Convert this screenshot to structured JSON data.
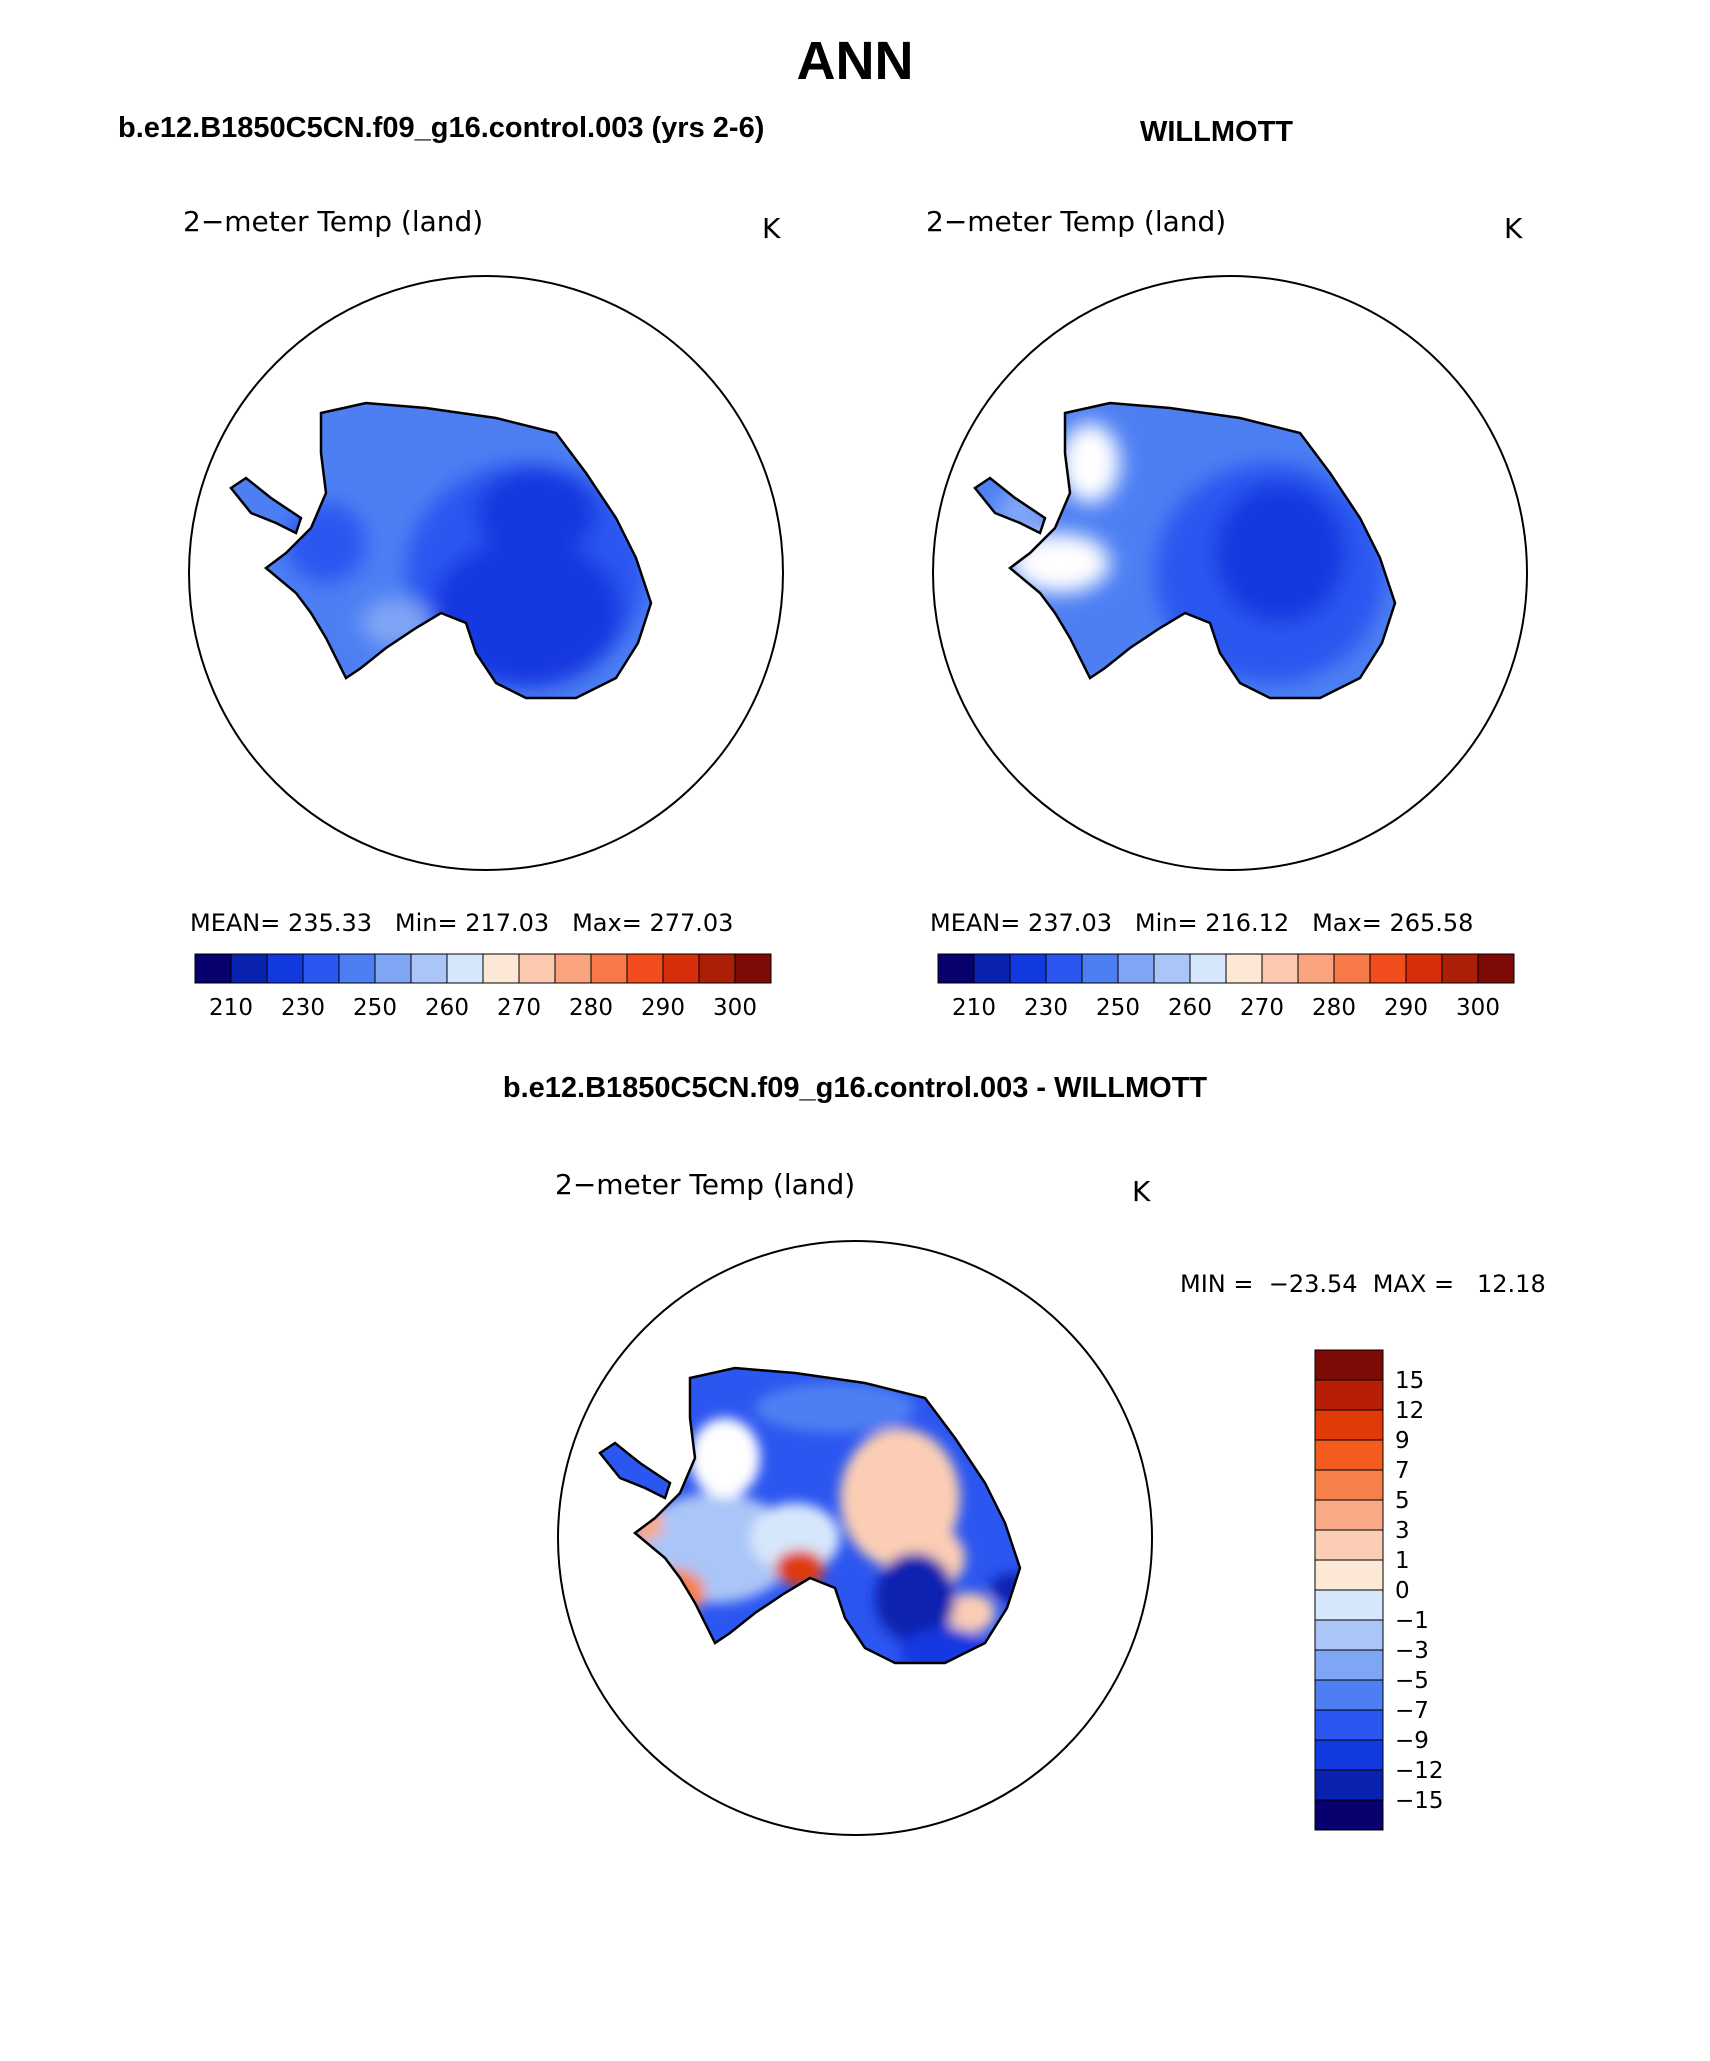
{
  "title": "ANN",
  "panel_left": {
    "title": "b.e12.B1850C5CN.f09_g16.control.003 (yrs 2-6)",
    "variable": "2−meter Temp (land)",
    "units": "K",
    "stats": {
      "mean_label": "MEAN=",
      "mean": "235.33",
      "min_label": "Min=",
      "min": "217.03",
      "max_label": "Max=",
      "max": "277.03"
    }
  },
  "panel_right": {
    "title": "WILLMOTT",
    "variable": "2−meter Temp (land)",
    "units": "K",
    "stats": {
      "mean_label": "MEAN=",
      "mean": "237.03",
      "min_label": "Min=",
      "min": "216.12",
      "max_label": "Max=",
      "max": "265.58"
    }
  },
  "panel_diff": {
    "title": "b.e12.B1850C5CN.f09_g16.control.003 - WILLMOTT",
    "variable": "2−meter Temp (land)",
    "units": "K",
    "minmax": "MIN =  −23.54  MAX =   12.18"
  },
  "colorbar_abs": {
    "colors": [
      "#08006e",
      "#0a22b0",
      "#1238e0",
      "#2c56f0",
      "#4d7ff3",
      "#7fa5f5",
      "#aac5f7",
      "#d7e7fb",
      "#fde8d6",
      "#fcc9b0",
      "#f9a47e",
      "#f77848",
      "#f24b1c",
      "#d62e0a",
      "#aa1f06",
      "#7d0a05"
    ],
    "labels": [
      "210",
      "230",
      "250",
      "260",
      "270",
      "280",
      "290",
      "300"
    ]
  },
  "colorbar_diff": {
    "colors": [
      "#7d0a05",
      "#b81e06",
      "#e03a09",
      "#f45b1e",
      "#f6804a",
      "#f9a985",
      "#fbcdb4",
      "#fde8d6",
      "#d7e7fb",
      "#aac5f7",
      "#7fa5f5",
      "#4d7ff3",
      "#2c56f0",
      "#1238e0",
      "#0a22b0",
      "#08006e"
    ],
    "labels": [
      "15",
      "12",
      "9",
      "7",
      "5",
      "3",
      "1",
      "0",
      "−1",
      "−3",
      "−5",
      "−7",
      "−9",
      "−12",
      "−15"
    ]
  }
}
